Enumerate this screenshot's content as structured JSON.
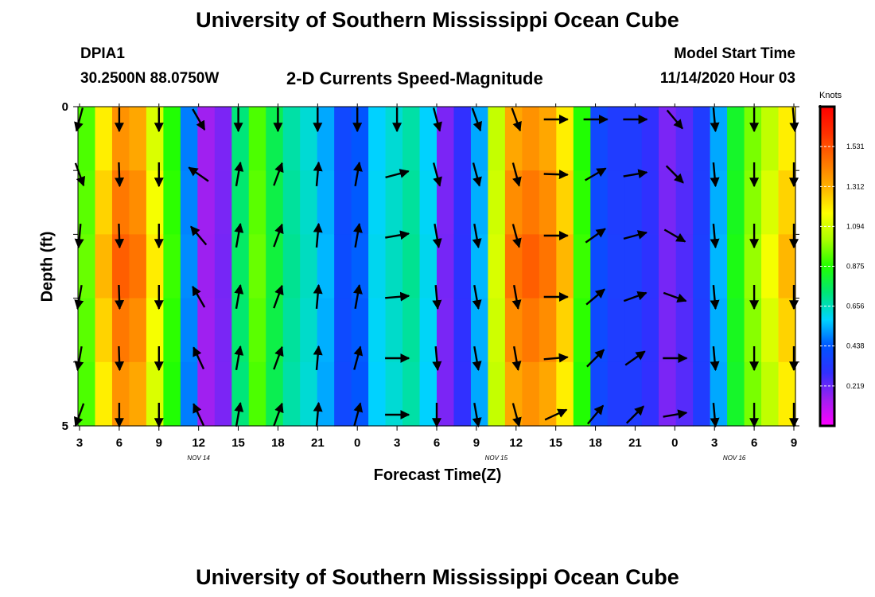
{
  "header": {
    "title": "University of Southern Mississippi Ocean Cube",
    "station": "DPIA1",
    "coords": "30.2500N 88.0750W",
    "subtitle": "2-D Currents Speed-Magnitude",
    "model_start_label": "Model Start Time",
    "model_start_value": "11/14/2020 Hour 03"
  },
  "footer": {
    "title": "University of Southern Mississippi Ocean Cube"
  },
  "chart_data": {
    "type": "heatmap",
    "xlabel": "Forecast Time(Z)",
    "ylabel": "Depth (ft)",
    "x_ticks": [
      "3",
      "6",
      "9",
      "12",
      "15",
      "18",
      "21",
      "0",
      "3",
      "6",
      "9",
      "12",
      "15",
      "18",
      "21",
      "0",
      "3",
      "6",
      "9"
    ],
    "date_labels": [
      {
        "label": "NOV 14",
        "tick_index": 3
      },
      {
        "label": "NOV 15",
        "tick_index": 10.5
      },
      {
        "label": "NOV 16",
        "tick_index": 16.5
      }
    ],
    "y_ticks": [
      "0",
      "5"
    ],
    "ylim": [
      0,
      5
    ],
    "colorbar": {
      "unit": "Knots",
      "ticks": [
        1.531,
        1.312,
        1.094,
        0.875,
        0.656,
        0.438,
        0.219
      ],
      "range": [
        0.0,
        1.75
      ]
    },
    "speed_by_time": [
      0.95,
      1.3,
      1.5,
      1.45,
      1.2,
      0.9,
      0.5,
      0.15,
      0.2,
      0.75,
      0.95,
      0.8,
      0.7,
      0.65,
      0.55,
      0.4,
      0.45,
      0.6,
      0.65,
      0.7,
      0.6,
      0.2,
      0.3,
      0.55,
      1.1,
      1.45,
      1.5,
      1.45,
      1.3,
      0.9,
      0.4,
      0.35,
      0.35,
      0.3,
      0.2,
      0.25,
      0.35,
      0.55,
      0.85,
      1.0,
      1.15,
      1.3
    ],
    "arrows": {
      "columns": [
        {
          "tick": 0.0,
          "dirs": [
            195,
            160,
            185,
            190,
            190,
            200
          ]
        },
        {
          "tick": 1.0,
          "dirs": [
            180,
            178,
            178,
            178,
            178,
            180
          ]
        },
        {
          "tick": 2.0,
          "dirs": [
            180,
            180,
            180,
            180,
            180,
            180
          ]
        },
        {
          "tick": 3.0,
          "dirs": [
            150,
            305,
            320,
            330,
            335,
            335
          ]
        },
        {
          "tick": 4.0,
          "dirs": [
            180,
            10,
            10,
            10,
            10,
            10
          ]
        },
        {
          "tick": 5.0,
          "dirs": [
            180,
            20,
            20,
            20,
            20,
            20
          ]
        },
        {
          "tick": 6.0,
          "dirs": [
            180,
            5,
            5,
            5,
            5,
            5
          ]
        },
        {
          "tick": 7.0,
          "dirs": [
            180,
            10,
            10,
            10,
            15,
            15
          ]
        },
        {
          "tick": 8.0,
          "dirs": [
            180,
            75,
            80,
            85,
            90,
            90
          ]
        },
        {
          "tick": 9.0,
          "dirs": [
            165,
            165,
            170,
            175,
            175,
            180
          ]
        },
        {
          "tick": 10.0,
          "dirs": [
            160,
            165,
            170,
            170,
            170,
            170
          ]
        },
        {
          "tick": 11.0,
          "dirs": [
            160,
            165,
            165,
            170,
            170,
            165
          ]
        },
        {
          "tick": 12.0,
          "dirs": [
            90,
            92,
            90,
            90,
            85,
            65
          ]
        },
        {
          "tick": 13.0,
          "dirs": [
            90,
            60,
            55,
            50,
            45,
            40
          ]
        },
        {
          "tick": 14.0,
          "dirs": [
            90,
            80,
            75,
            70,
            55,
            45
          ]
        },
        {
          "tick": 15.0,
          "dirs": [
            140,
            135,
            120,
            110,
            90,
            80
          ]
        },
        {
          "tick": 16.0,
          "dirs": [
            175,
            175,
            175,
            175,
            175,
            175
          ]
        },
        {
          "tick": 17.0,
          "dirs": [
            180,
            180,
            180,
            180,
            180,
            180
          ]
        },
        {
          "tick": 18.0,
          "dirs": [
            175,
            180,
            180,
            180,
            180,
            180
          ]
        }
      ]
    }
  },
  "colors": {
    "colormap": [
      "#ff00ff",
      "#a020f0",
      "#3030ff",
      "#0055ff",
      "#00d4ff",
      "#00e676",
      "#22ff00",
      "#aaff00",
      "#ffff00",
      "#ffb000",
      "#ff7000",
      "#ff3000",
      "#ff0000"
    ]
  }
}
